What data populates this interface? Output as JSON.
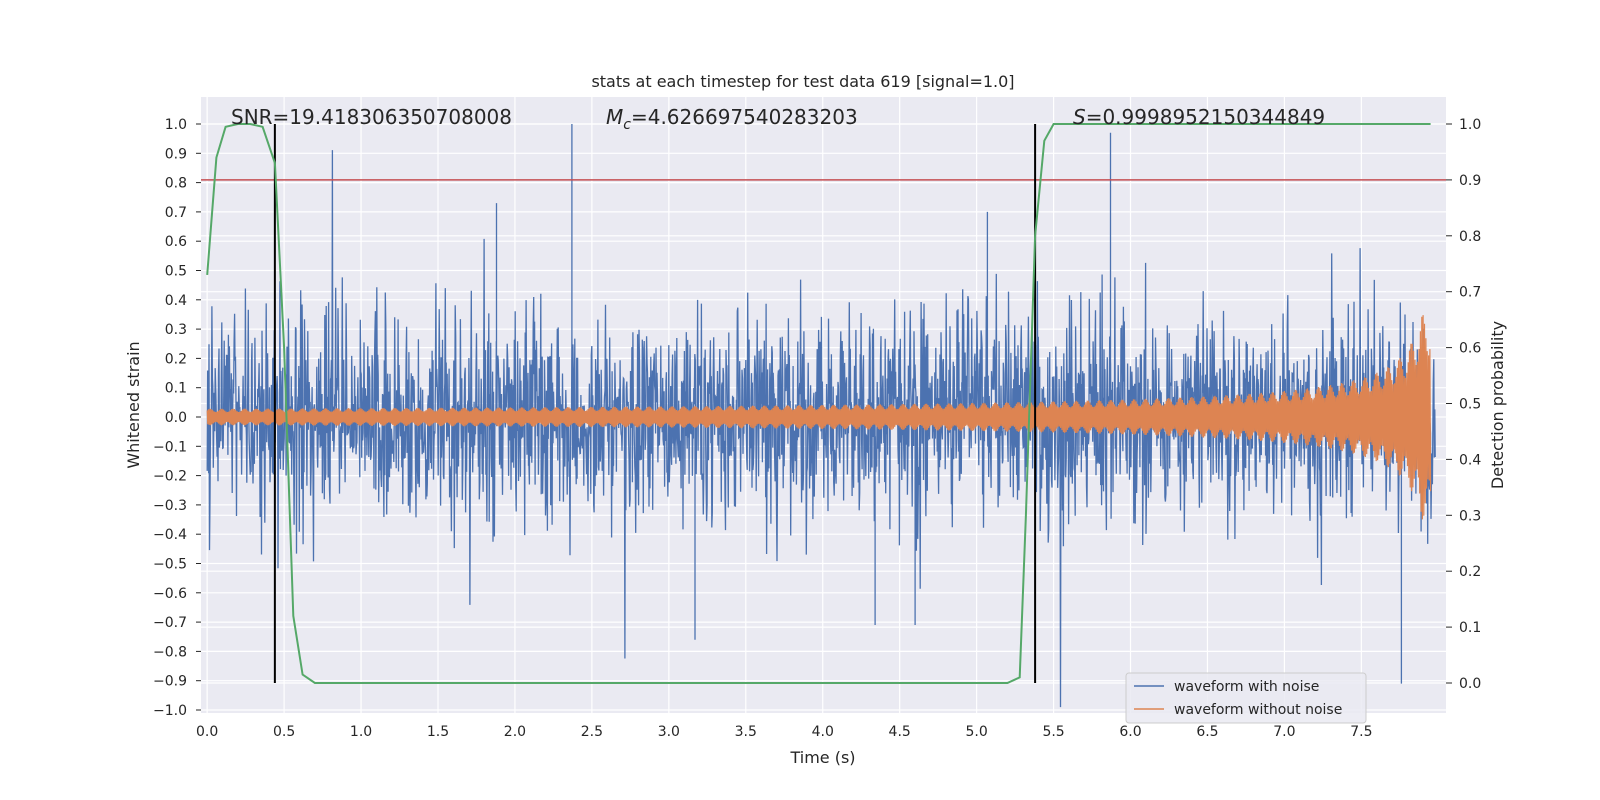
{
  "chart_data": {
    "type": "line",
    "title": "stats at each timestep for test data 619 [signal=1.0]",
    "xlabel": "Time (s)",
    "ylabel": "Whitened strain",
    "ylabel_right": "Detection probability",
    "xlim": [
      0.0,
      8.0
    ],
    "ylim": [
      -1.0,
      1.0
    ],
    "ylim_right": [
      -0.05,
      1.05
    ],
    "x_ticks": [
      0.0,
      0.5,
      1.0,
      1.5,
      2.0,
      2.5,
      3.0,
      3.5,
      4.0,
      4.5,
      5.0,
      5.5,
      6.0,
      6.5,
      7.0,
      7.5
    ],
    "x_tick_labels": [
      "0.0",
      "0.5",
      "1.0",
      "1.5",
      "2.0",
      "2.5",
      "3.0",
      "3.5",
      "4.0",
      "4.5",
      "5.0",
      "5.5",
      "6.0",
      "6.5",
      "7.0",
      "7.5"
    ],
    "y_ticks": [
      1.0,
      0.9,
      0.8,
      0.7,
      0.6,
      0.5,
      0.4,
      0.3,
      0.2,
      0.1,
      0.0,
      -0.1,
      -0.2,
      -0.3,
      -0.4,
      -0.5,
      -0.6,
      -0.7,
      -0.8,
      -0.9,
      -1.0
    ],
    "y_tick_labels": [
      "1.0",
      "0.9",
      "0.8",
      "0.7",
      "0.6",
      "0.5",
      "0.4",
      "0.3",
      "0.2",
      "0.1",
      "0.0",
      "−0.1",
      "−0.2",
      "−0.3",
      "−0.4",
      "−0.5",
      "−0.6",
      "−0.7",
      "−0.8",
      "−0.9",
      "−1.0"
    ],
    "y_right_ticks": [
      1.0,
      0.9,
      0.8,
      0.7,
      0.6,
      0.5,
      0.4,
      0.3,
      0.2,
      0.1,
      0.0
    ],
    "y_right_tick_labels": [
      "1.0",
      "0.9",
      "0.8",
      "0.7",
      "0.6",
      "0.5",
      "0.4",
      "0.3",
      "0.2",
      "0.1",
      "0.0"
    ],
    "grid": true,
    "annotations": {
      "snr": "SNR=19.418306350708008",
      "mc_symbol": "M",
      "mc_sub": "c",
      "mc_value": "=4.626697540283203",
      "s_symbol": "S",
      "s_value": "=0.9998952150344849"
    },
    "threshold": {
      "value": 0.9,
      "axis": "right",
      "color": "#c44e52"
    },
    "vertical_markers": [
      0.44,
      5.38
    ],
    "legend": {
      "position": "lower-right",
      "entries": [
        {
          "label": "waveform with noise",
          "color": "#4c72b0"
        },
        {
          "label": "waveform without noise",
          "color": "#dd8452"
        }
      ]
    },
    "series": [
      {
        "name": "waveform with noise",
        "axis": "left",
        "color": "#4c72b0",
        "style": "noisy strain, typical amplitude ~0.2, spikes up to 1.0",
        "t_start": 0.0,
        "t_end": 8.0
      },
      {
        "name": "waveform without noise",
        "axis": "left",
        "color": "#dd8452",
        "style": "chirp, amplitude 0.03 rising to 0.35 near t=7.9",
        "t_start": 0.0,
        "t_end": 7.95
      },
      {
        "name": "detection probability",
        "axis": "right",
        "color": "#55a868",
        "x": [
          0.0,
          0.06,
          0.12,
          0.2,
          0.28,
          0.36,
          0.44,
          0.5,
          0.56,
          0.62,
          0.7,
          1.0,
          2.0,
          3.0,
          4.0,
          5.0,
          5.2,
          5.28,
          5.32,
          5.38,
          5.44,
          5.5,
          6.0,
          7.0,
          7.95
        ],
        "values": [
          0.73,
          0.94,
          0.995,
          1.0,
          1.0,
          0.995,
          0.93,
          0.6,
          0.12,
          0.015,
          0.0,
          0.0,
          0.0,
          0.0,
          0.0,
          0.0,
          0.0,
          0.01,
          0.3,
          0.8,
          0.97,
          1.0,
          1.0,
          1.0,
          1.0
        ]
      }
    ]
  }
}
